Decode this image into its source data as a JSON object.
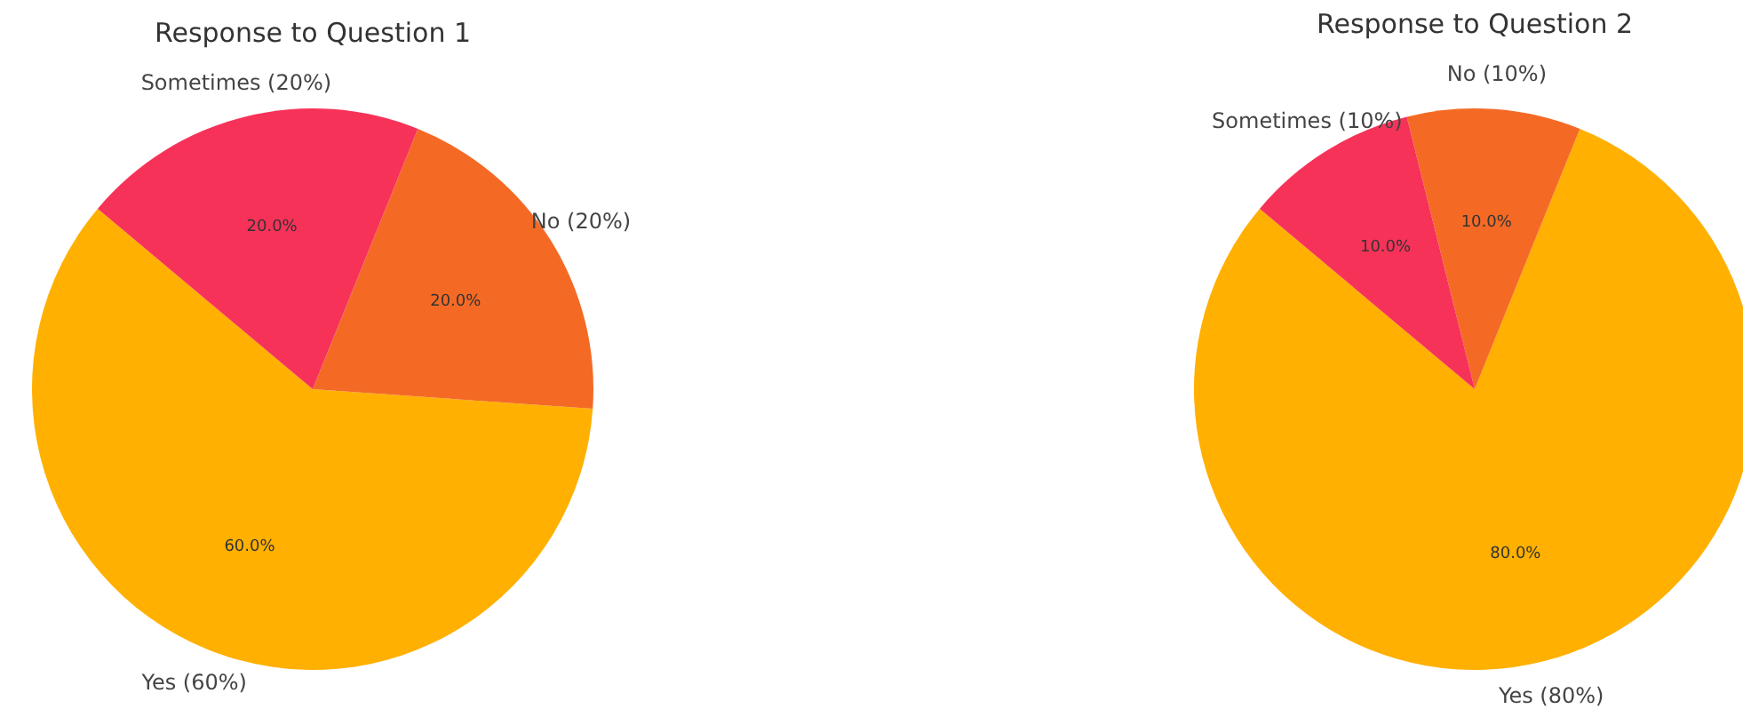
{
  "chart_data": [
    {
      "type": "pie",
      "title": "Response to Question 1",
      "categories": [
        "Yes (60%)",
        "No (20%)",
        "Sometimes (20%)"
      ],
      "values": [
        60,
        20,
        20
      ],
      "colors": [
        "#ffb000",
        "#f46a25",
        "#f73259"
      ],
      "value_labels": [
        "60.0%",
        "20.0%",
        "20.0%"
      ]
    },
    {
      "type": "pie",
      "title": "Response to Question 2",
      "categories": [
        "Yes (80%)",
        "No (10%)",
        "Sometimes (10%)"
      ],
      "values": [
        80,
        10,
        10
      ],
      "colors": [
        "#ffb000",
        "#f46a25",
        "#f73259"
      ],
      "value_labels": [
        "80.0%",
        "10.0%",
        "10.0%"
      ]
    }
  ]
}
